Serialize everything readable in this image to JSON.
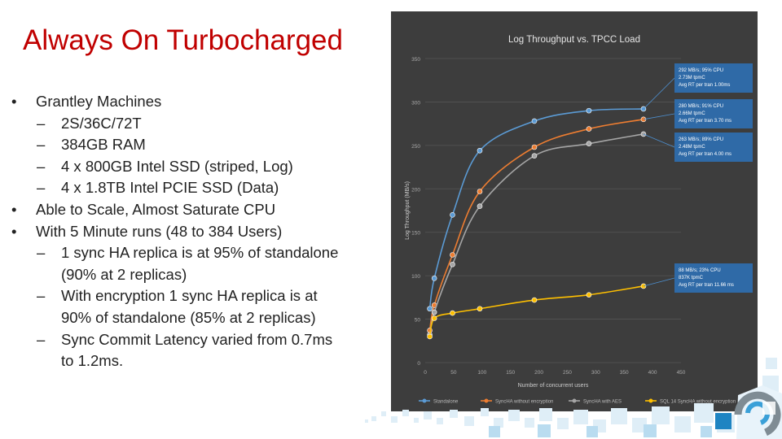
{
  "slide": {
    "title": "Always On Turbocharged",
    "bullets": [
      {
        "level": 1,
        "marker": "•",
        "text": "Grantley Machines"
      },
      {
        "level": 2,
        "marker": "–",
        "text": "2S/36C/72T"
      },
      {
        "level": 2,
        "marker": "–",
        "text": "384GB RAM"
      },
      {
        "level": 2,
        "marker": "–",
        "text": "4 x 800GB Intel SSD (striped, Log)"
      },
      {
        "level": 2,
        "marker": "–",
        "text": "4 x 1.8TB Intel PCIE SSD (Data)"
      },
      {
        "level": 1,
        "marker": "•",
        "text": "Able to Scale, Almost Saturate CPU"
      },
      {
        "level": 1,
        "marker": "•",
        "text": "With 5 Minute runs (48 to 384 Users)"
      },
      {
        "level": 2,
        "marker": "–",
        "text": "1 sync HA replica is at 95% of standalone"
      },
      {
        "level": 3,
        "marker": "",
        "text": "(90% at 2 replicas)"
      },
      {
        "level": 2,
        "marker": "–",
        "text": "With encryption 1 sync HA replica is at"
      },
      {
        "level": 3,
        "marker": "",
        "text": "90% of standalone (85% at 2 replicas)"
      },
      {
        "level": 2,
        "marker": "–",
        "text": "Sync Commit Latency varied from 0.7ms"
      },
      {
        "level": 3,
        "marker": "",
        "text": "to 1.2ms."
      }
    ]
  },
  "chart_data": {
    "type": "line",
    "title": "Log Throughput vs. TPCC Load",
    "xlabel": "Number of concurrent users",
    "ylabel": "Log Throughput (MB/s)",
    "xlim": [
      0,
      450
    ],
    "ylim": [
      0,
      350
    ],
    "x_ticks": [
      0,
      50,
      100,
      150,
      200,
      250,
      300,
      350,
      400,
      450
    ],
    "y_ticks": [
      0,
      50,
      100,
      150,
      200,
      250,
      300,
      350
    ],
    "grid": true,
    "legend_position": "bottom",
    "series": [
      {
        "name": "Standalone",
        "color": "#5b9bd5",
        "points": [
          [
            8,
            62
          ],
          [
            16,
            97
          ],
          [
            48,
            170
          ],
          [
            96,
            244
          ],
          [
            192,
            278
          ],
          [
            288,
            290
          ],
          [
            384,
            292
          ]
        ]
      },
      {
        "name": "SyncHA without encryption",
        "color": "#ed7d31",
        "points": [
          [
            8,
            37
          ],
          [
            16,
            66
          ],
          [
            48,
            124
          ],
          [
            96,
            197
          ],
          [
            192,
            248
          ],
          [
            288,
            269
          ],
          [
            384,
            280
          ]
        ]
      },
      {
        "name": "SyncHA with AES",
        "color": "#a5a5a5",
        "points": [
          [
            8,
            32
          ],
          [
            16,
            58
          ],
          [
            48,
            113
          ],
          [
            96,
            180
          ],
          [
            192,
            238
          ],
          [
            288,
            252
          ],
          [
            384,
            263
          ]
        ]
      },
      {
        "name": "SQL 14 SyncHA without encryption",
        "color": "#ffc000",
        "points": [
          [
            8,
            30
          ],
          [
            16,
            51
          ],
          [
            48,
            57
          ],
          [
            96,
            62
          ],
          [
            192,
            72
          ],
          [
            288,
            78
          ],
          [
            384,
            88
          ]
        ]
      }
    ],
    "annotations": [
      {
        "lines": [
          "292 MB/s; 95% CPU",
          "2.73M tpmC",
          "Avg RT per tran 1.00ms"
        ]
      },
      {
        "lines": [
          "280 MB/s; 91% CPU",
          "2.66M tpmC",
          "Avg RT per tran 3.70 ms"
        ]
      },
      {
        "lines": [
          "263 MB/s; 89% CPU",
          "2.48M tpmC",
          "Avg RT per tran 4.00 ms"
        ]
      },
      {
        "lines": [
          "88 MB/s; 23% CPU",
          "837K tpmC",
          "Avg RT per tran 11.66 ms"
        ]
      }
    ]
  }
}
